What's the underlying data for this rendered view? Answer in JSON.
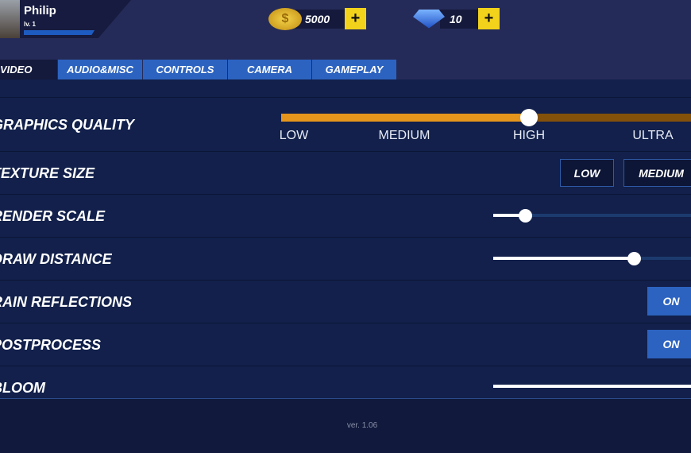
{
  "profile": {
    "name": "Philip",
    "level": "lv. 1"
  },
  "currency": {
    "coins": "5000",
    "gems": "10",
    "add_label": "+"
  },
  "tabs": [
    {
      "label": "VIDEO",
      "active": true
    },
    {
      "label": "AUDIO&MISC"
    },
    {
      "label": "CONTROLS"
    },
    {
      "label": "CAMERA"
    },
    {
      "label": "GAMEPLAY"
    }
  ],
  "settings": {
    "graphics_quality": {
      "label": "GRAPHICS QUALITY",
      "options": [
        "LOW",
        "MEDIUM",
        "HIGH",
        "ULTRA"
      ],
      "selected": "HIGH"
    },
    "texture_size": {
      "label": "TEXTURE SIZE",
      "options": [
        "LOW",
        "MEDIUM"
      ]
    },
    "render_scale": {
      "label": "RENDER SCALE",
      "value": 0.16
    },
    "draw_distance": {
      "label": "DRAW DISTANCE",
      "value": 0.71
    },
    "rain_reflections": {
      "label": "RAIN REFLECTIONS",
      "value": "ON"
    },
    "postprocess": {
      "label": "POSTPROCESS",
      "value": "ON"
    },
    "bloom": {
      "label": "BLOOM",
      "value": 1.0
    }
  },
  "footer": {
    "version": "ver. 1.06"
  },
  "colors": {
    "accent": "#2c63c0",
    "quality_fill": "#e6951c",
    "plus": "#f2d21a"
  }
}
